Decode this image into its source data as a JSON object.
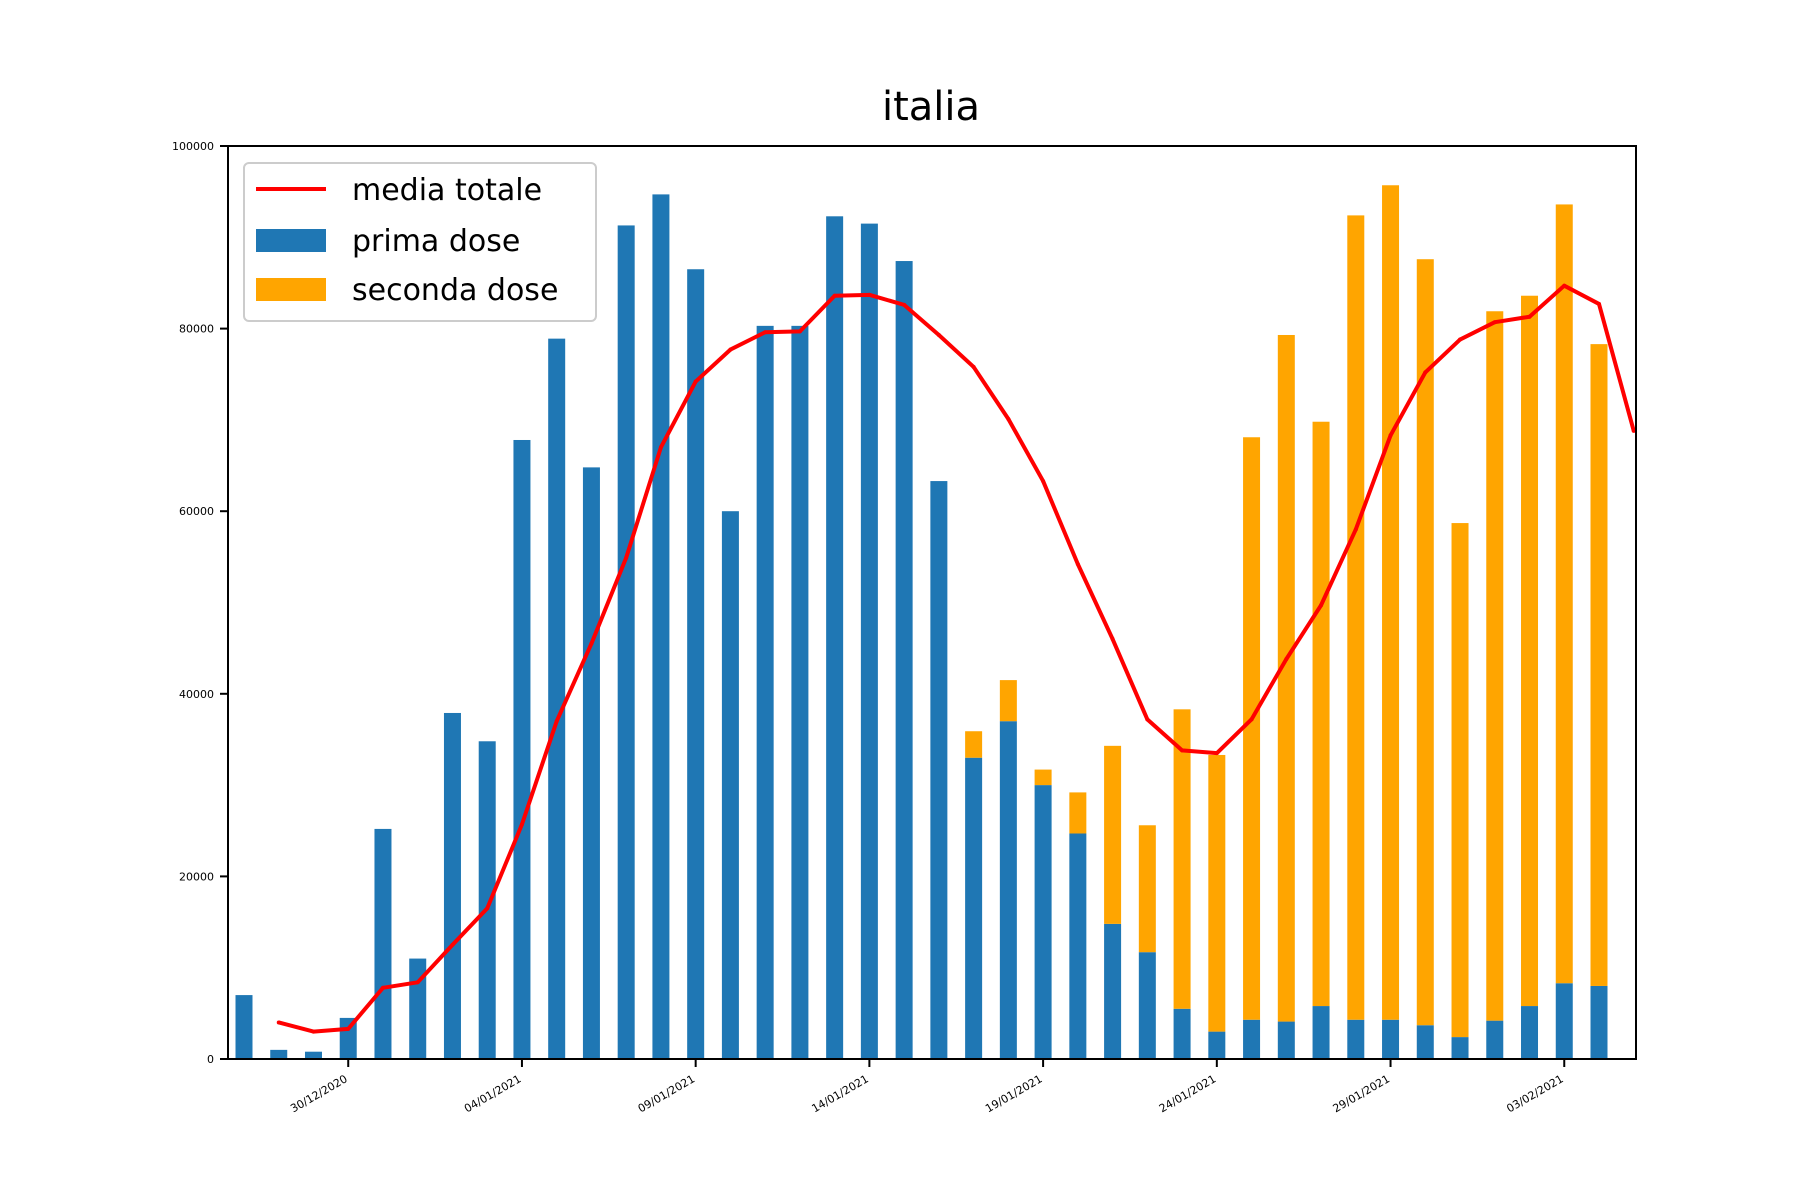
{
  "chart_data": {
    "type": "bar",
    "title": "italia",
    "xlabel": "",
    "ylabel": "",
    "ylim": [
      0,
      100000
    ],
    "yticks": [
      0,
      20000,
      40000,
      60000,
      80000,
      100000
    ],
    "ytick_labels": [
      "0",
      "20000",
      "40000",
      "60000",
      "80000",
      "100000"
    ],
    "xtick_labels": [
      "30/12/2020",
      "04/01/2021",
      "09/01/2021",
      "14/01/2021",
      "19/01/2021",
      "24/01/2021",
      "29/01/2021",
      "03/02/2021"
    ],
    "xtick_dates": [
      "2020-12-30",
      "2021-01-04",
      "2021-01-09",
      "2021-01-14",
      "2021-01-19",
      "2021-01-24",
      "2021-01-29",
      "2021-02-03"
    ],
    "x": [
      "2020-12-27",
      "2020-12-28",
      "2020-12-29",
      "2020-12-30",
      "2020-12-31",
      "2021-01-01",
      "2021-01-02",
      "2021-01-03",
      "2021-01-04",
      "2021-01-05",
      "2021-01-06",
      "2021-01-07",
      "2021-01-08",
      "2021-01-09",
      "2021-01-10",
      "2021-01-11",
      "2021-01-12",
      "2021-01-13",
      "2021-01-14",
      "2021-01-15",
      "2021-01-16",
      "2021-01-17",
      "2021-01-18",
      "2021-01-19",
      "2021-01-20",
      "2021-01-21",
      "2021-01-22",
      "2021-01-23",
      "2021-01-24",
      "2021-01-25",
      "2021-01-26",
      "2021-01-27",
      "2021-01-28",
      "2021-01-29",
      "2021-01-30",
      "2021-01-31",
      "2021-02-01",
      "2021-02-02",
      "2021-02-03",
      "2021-02-04"
    ],
    "legend_position": "upper-left",
    "series": [
      {
        "name": "prima dose",
        "kind": "bar",
        "color": "#1f77b4",
        "values": [
          7000,
          1000,
          800,
          4500,
          25200,
          11000,
          37900,
          34800,
          67800,
          78900,
          64800,
          91300,
          94700,
          86500,
          60000,
          80300,
          80300,
          92300,
          91500,
          87400,
          63300,
          33000,
          37000,
          30000,
          24700,
          14800,
          11700,
          5500,
          3000,
          4300,
          4100,
          5800,
          4300,
          4300,
          3700,
          2400,
          4200,
          5800,
          8300,
          8000
        ]
      },
      {
        "name": "seconda dose",
        "kind": "bar",
        "color": "#ffa500",
        "values": [
          0,
          0,
          0,
          0,
          0,
          0,
          0,
          0,
          0,
          0,
          0,
          0,
          0,
          0,
          0,
          0,
          0,
          0,
          0,
          0,
          0,
          2900,
          4500,
          1700,
          4500,
          19500,
          13900,
          32800,
          30300,
          63800,
          75200,
          64000,
          88100,
          91400,
          83900,
          56300,
          77700,
          77800,
          85300,
          70300
        ]
      },
      {
        "name": "media totale",
        "kind": "line",
        "color": "#ff0000",
        "x": [
          "2020-12-28",
          "2020-12-29",
          "2020-12-30",
          "2020-12-31",
          "2021-01-01",
          "2021-01-02",
          "2021-01-03",
          "2021-01-04",
          "2021-01-05",
          "2021-01-06",
          "2021-01-07",
          "2021-01-08",
          "2021-01-09",
          "2021-01-10",
          "2021-01-11",
          "2021-01-12",
          "2021-01-13",
          "2021-01-14",
          "2021-01-15",
          "2021-01-16",
          "2021-01-17",
          "2021-01-18",
          "2021-01-19",
          "2021-01-20",
          "2021-01-21",
          "2021-01-22",
          "2021-01-23",
          "2021-01-24",
          "2021-01-25",
          "2021-01-26",
          "2021-01-27",
          "2021-01-28",
          "2021-01-29",
          "2021-01-30",
          "2021-01-31",
          "2021-02-01",
          "2021-02-02",
          "2021-02-03",
          "2021-02-04",
          "2021-02-05"
        ],
        "values": [
          4000,
          3000,
          3300,
          7800,
          8400,
          12500,
          16500,
          25700,
          37000,
          45500,
          54900,
          67000,
          74200,
          77700,
          79600,
          79700,
          83600,
          83700,
          82600,
          79300,
          75800,
          70100,
          63300,
          54200,
          46000,
          37200,
          33800,
          33500,
          37200,
          43800,
          49700,
          58000,
          68300,
          75200,
          78800,
          80700,
          81300,
          84700,
          82700,
          68800
        ]
      }
    ]
  }
}
